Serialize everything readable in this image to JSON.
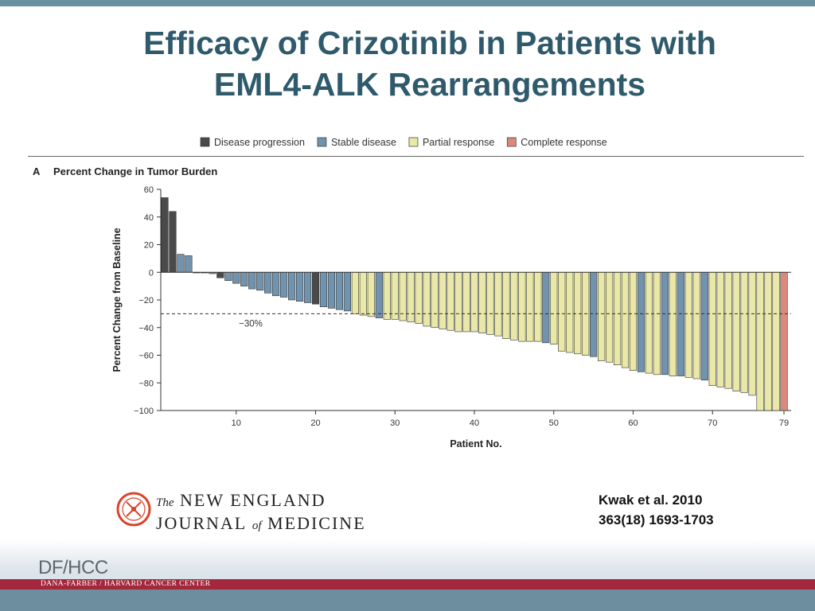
{
  "slide": {
    "title_line1": "Efficacy of Crizotinib in Patients with",
    "title_line2": "EML4-ALK Rearrangements",
    "citation_line1": "Kwak et al. 2010",
    "citation_line2": "363(18) 1693-1703"
  },
  "journal": {
    "the": "The",
    "new_england": "NEW ENGLAND",
    "journal": "JOURNAL",
    "of": "of",
    "medicine": "MEDICINE"
  },
  "footer": {
    "logo": "DF/HCC",
    "center_name": "DANA-FARBER / HARVARD CANCER CENTER"
  },
  "colors": {
    "title": "#2f5a6b",
    "top_bar": "#6a8fa0",
    "footer_red": "#a3273d",
    "footer_bottom": "#6c8e9f",
    "progression": "#4a4a4a",
    "stable": "#7193ad",
    "partial": "#e9e8a6",
    "complete": "#d98a7c"
  },
  "icons": {
    "journal_seal": "nejm-seal-icon"
  },
  "chart_data": {
    "type": "bar",
    "panel_label": "A",
    "title": "Percent Change in Tumor Burden",
    "xlabel": "Patient No.",
    "ylabel": "Percent Change from Baseline",
    "ylim": [
      -100,
      60
    ],
    "yticks": [
      60,
      40,
      20,
      0,
      -20,
      -40,
      -60,
      -80,
      -100
    ],
    "xticks": [
      10,
      20,
      30,
      40,
      50,
      60,
      70,
      79
    ],
    "reference_line": {
      "y": -30,
      "label": "−30%"
    },
    "legend_placement": "top",
    "grid": false,
    "legend": [
      {
        "key": "progression",
        "label": "Disease progression"
      },
      {
        "key": "stable",
        "label": "Stable disease"
      },
      {
        "key": "partial",
        "label": "Partial response"
      },
      {
        "key": "complete",
        "label": "Complete response"
      }
    ],
    "patients": [
      1,
      2,
      3,
      4,
      5,
      6,
      7,
      8,
      9,
      10,
      11,
      12,
      13,
      14,
      15,
      16,
      17,
      18,
      19,
      20,
      21,
      22,
      23,
      24,
      25,
      26,
      27,
      28,
      29,
      30,
      31,
      32,
      33,
      34,
      35,
      36,
      37,
      38,
      39,
      40,
      41,
      42,
      43,
      44,
      45,
      46,
      47,
      48,
      49,
      50,
      51,
      52,
      53,
      54,
      55,
      56,
      57,
      58,
      59,
      60,
      61,
      62,
      63,
      64,
      65,
      66,
      67,
      68,
      69,
      70,
      71,
      72,
      73,
      74,
      75,
      76,
      77,
      78,
      79
    ],
    "values": [
      54,
      44,
      13,
      12,
      0,
      0,
      -1,
      -4,
      -6,
      -8,
      -10,
      -12,
      -13,
      -15,
      -17,
      -18,
      -20,
      -21,
      -22,
      -23,
      -25,
      -26,
      -27,
      -28,
      -30,
      -31,
      -32,
      -33,
      -34,
      -34,
      -35,
      -36,
      -37,
      -39,
      -40,
      -41,
      -42,
      -43,
      -43,
      -43,
      -44,
      -45,
      -46,
      -48,
      -49,
      -50,
      -50,
      -50,
      -51,
      -52,
      -57,
      -58,
      -59,
      -60,
      -61,
      -64,
      -65,
      -67,
      -69,
      -71,
      -72,
      -73,
      -74,
      -74,
      -75,
      -75,
      -76,
      -77,
      -78,
      -82,
      -83,
      -84,
      -86,
      -87,
      -89,
      -100,
      -100,
      -100,
      -100
    ],
    "categories_by_patient": [
      "progression",
      "progression",
      "stable",
      "stable",
      "progression",
      "progression",
      "stable",
      "progression",
      "stable",
      "stable",
      "stable",
      "stable",
      "stable",
      "stable",
      "stable",
      "stable",
      "stable",
      "stable",
      "stable",
      "progression",
      "stable",
      "stable",
      "stable",
      "stable",
      "partial",
      "partial",
      "partial",
      "stable",
      "partial",
      "partial",
      "partial",
      "partial",
      "partial",
      "partial",
      "partial",
      "partial",
      "partial",
      "partial",
      "partial",
      "partial",
      "partial",
      "partial",
      "partial",
      "partial",
      "partial",
      "partial",
      "partial",
      "partial",
      "stable",
      "partial",
      "partial",
      "partial",
      "partial",
      "partial",
      "stable",
      "partial",
      "partial",
      "partial",
      "partial",
      "partial",
      "stable",
      "partial",
      "partial",
      "stable",
      "partial",
      "stable",
      "partial",
      "partial",
      "stable",
      "partial",
      "partial",
      "partial",
      "partial",
      "partial",
      "partial",
      "partial",
      "partial",
      "partial",
      "complete"
    ]
  }
}
